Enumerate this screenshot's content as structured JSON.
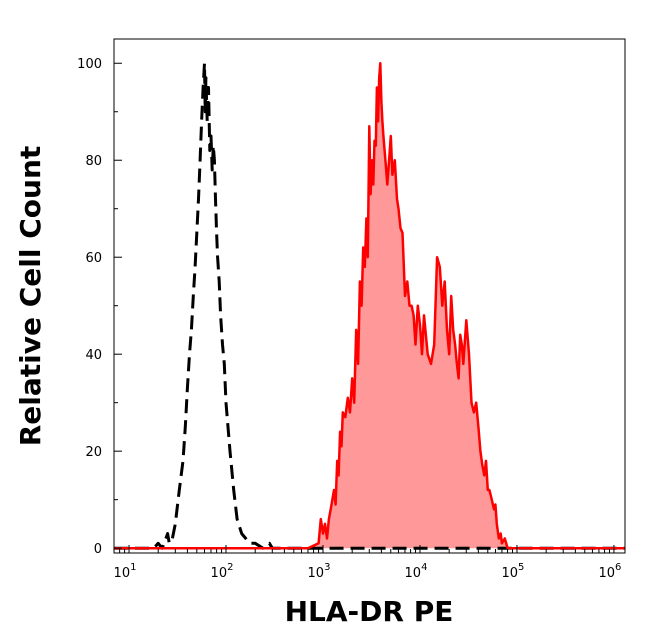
{
  "chart_data": {
    "type": "area",
    "title": "",
    "xlabel": "HLA-DR PE",
    "ylabel": "Relative Cell Count",
    "xscale": "log",
    "xlim": [
      7,
      1300000
    ],
    "ylim": [
      -1,
      105
    ],
    "x_ticks": [
      {
        "value": 10,
        "base": "10",
        "exp": "1"
      },
      {
        "value": 100,
        "base": "10",
        "exp": "2"
      },
      {
        "value": 1000,
        "base": "10",
        "exp": "3"
      },
      {
        "value": 10000,
        "base": "10",
        "exp": "4"
      },
      {
        "value": 100000,
        "base": "10",
        "exp": "5"
      },
      {
        "value": 1000000,
        "base": "10",
        "exp": "6"
      }
    ],
    "y_ticks": [
      {
        "value": 0,
        "label": "0"
      },
      {
        "value": 20,
        "label": "20"
      },
      {
        "value": 40,
        "label": "40"
      },
      {
        "value": 60,
        "label": "60"
      },
      {
        "value": 80,
        "label": "80"
      },
      {
        "value": 100,
        "label": "100"
      }
    ],
    "grid": false,
    "series": [
      {
        "style": "dashed",
        "color": "#000000",
        "fill": "none",
        "points": [
          [
            7,
            0
          ],
          [
            18,
            0
          ],
          [
            20,
            1
          ],
          [
            22,
            0
          ],
          [
            24,
            2
          ],
          [
            25,
            3
          ],
          [
            26,
            1
          ],
          [
            28,
            2
          ],
          [
            30,
            5
          ],
          [
            33,
            12
          ],
          [
            36,
            18
          ],
          [
            38,
            25
          ],
          [
            40,
            33
          ],
          [
            42,
            40
          ],
          [
            44,
            45
          ],
          [
            46,
            52
          ],
          [
            48,
            58
          ],
          [
            50,
            65
          ],
          [
            52,
            72
          ],
          [
            54,
            80
          ],
          [
            56,
            88
          ],
          [
            58,
            95
          ],
          [
            60,
            100
          ],
          [
            61,
            90
          ],
          [
            62,
            97
          ],
          [
            64,
            88
          ],
          [
            66,
            95
          ],
          [
            68,
            82
          ],
          [
            70,
            85
          ],
          [
            72,
            78
          ],
          [
            74,
            83
          ],
          [
            76,
            80
          ],
          [
            78,
            72
          ],
          [
            80,
            65
          ],
          [
            82,
            60
          ],
          [
            85,
            55
          ],
          [
            88,
            48
          ],
          [
            92,
            42
          ],
          [
            96,
            38
          ],
          [
            100,
            30
          ],
          [
            110,
            20
          ],
          [
            120,
            12
          ],
          [
            130,
            6
          ],
          [
            145,
            3
          ],
          [
            160,
            2
          ],
          [
            175,
            1
          ],
          [
            200,
            1
          ],
          [
            240,
            0
          ],
          [
            280,
            1
          ],
          [
            300,
            0
          ],
          [
            350,
            0
          ],
          [
            1300000,
            0
          ]
        ]
      },
      {
        "style": "solid",
        "color": "#ff0000",
        "fill": "#ff9999",
        "points": [
          [
            7,
            0
          ],
          [
            700,
            0
          ],
          [
            900,
            1
          ],
          [
            950,
            6
          ],
          [
            1000,
            3
          ],
          [
            1050,
            5
          ],
          [
            1100,
            2
          ],
          [
            1150,
            6
          ],
          [
            1200,
            8
          ],
          [
            1300,
            12
          ],
          [
            1350,
            9
          ],
          [
            1400,
            18
          ],
          [
            1450,
            15
          ],
          [
            1500,
            24
          ],
          [
            1550,
            21
          ],
          [
            1600,
            28
          ],
          [
            1700,
            27
          ],
          [
            1800,
            31
          ],
          [
            1900,
            28
          ],
          [
            2000,
            35
          ],
          [
            2100,
            30
          ],
          [
            2200,
            45
          ],
          [
            2300,
            38
          ],
          [
            2400,
            55
          ],
          [
            2500,
            50
          ],
          [
            2600,
            62
          ],
          [
            2700,
            58
          ],
          [
            2800,
            68
          ],
          [
            2900,
            60
          ],
          [
            3000,
            87
          ],
          [
            3100,
            73
          ],
          [
            3200,
            80
          ],
          [
            3300,
            75
          ],
          [
            3400,
            84
          ],
          [
            3500,
            83
          ],
          [
            3600,
            95
          ],
          [
            3700,
            88
          ],
          [
            3800,
            97
          ],
          [
            3900,
            100
          ],
          [
            4000,
            92
          ],
          [
            4100,
            88
          ],
          [
            4200,
            85
          ],
          [
            4400,
            80
          ],
          [
            4600,
            75
          ],
          [
            4800,
            80
          ],
          [
            5000,
            85
          ],
          [
            5200,
            77
          ],
          [
            5500,
            80
          ],
          [
            5800,
            72
          ],
          [
            6000,
            70
          ],
          [
            6300,
            66
          ],
          [
            6600,
            65
          ],
          [
            7000,
            52
          ],
          [
            7400,
            55
          ],
          [
            7800,
            50
          ],
          [
            8200,
            50
          ],
          [
            8600,
            48
          ],
          [
            9000,
            42
          ],
          [
            9500,
            50
          ],
          [
            10000,
            46
          ],
          [
            10500,
            40
          ],
          [
            11000,
            48
          ],
          [
            12000,
            40
          ],
          [
            13000,
            38
          ],
          [
            14000,
            42
          ],
          [
            15000,
            60
          ],
          [
            16000,
            58
          ],
          [
            17000,
            50
          ],
          [
            18000,
            55
          ],
          [
            19000,
            45
          ],
          [
            20000,
            40
          ],
          [
            21000,
            52
          ],
          [
            22000,
            45
          ],
          [
            23000,
            42
          ],
          [
            24000,
            38
          ],
          [
            25000,
            35
          ],
          [
            26000,
            44
          ],
          [
            27000,
            42
          ],
          [
            28000,
            38
          ],
          [
            30000,
            47
          ],
          [
            32000,
            40
          ],
          [
            34000,
            30
          ],
          [
            36000,
            28
          ],
          [
            38000,
            30
          ],
          [
            40000,
            25
          ],
          [
            42000,
            20
          ],
          [
            44000,
            17
          ],
          [
            46000,
            15
          ],
          [
            48000,
            18
          ],
          [
            50000,
            12
          ],
          [
            52000,
            12
          ],
          [
            55000,
            10
          ],
          [
            58000,
            8
          ],
          [
            60000,
            9
          ],
          [
            62000,
            5
          ],
          [
            65000,
            2
          ],
          [
            68000,
            3
          ],
          [
            70000,
            1
          ],
          [
            75000,
            2
          ],
          [
            80000,
            0
          ],
          [
            1300000,
            0
          ]
        ]
      }
    ]
  }
}
